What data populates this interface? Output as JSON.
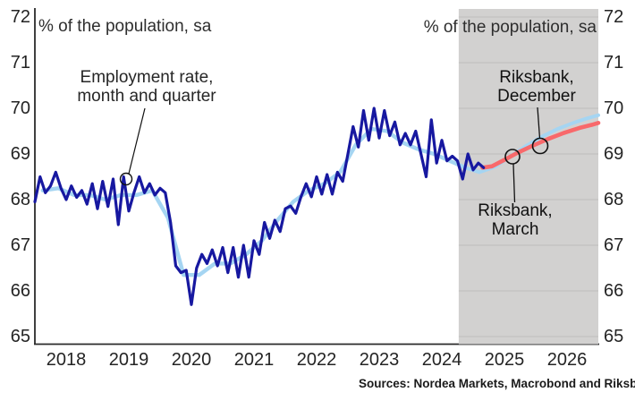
{
  "titles": {
    "left_unit": "% of the population, sa",
    "right_unit": "% of the population, sa"
  },
  "annotations": {
    "employment": {
      "line1": "Employment rate,",
      "line2": "month and quarter"
    },
    "riksbank_december": {
      "line1": "Riksbank,",
      "line2": "December"
    },
    "riksbank_march": {
      "line1": "Riksbank,",
      "line2": "March"
    }
  },
  "source_text": "Sources: Nordea Markets, Macrobond and Riksbank.",
  "colors": {
    "monthly_line": "#1718a0",
    "quarterly_line": "#a5d5f2",
    "march_forecast_line": "#f8696b",
    "forecast_band": "#d2d1d0",
    "gridline": "#bdbdbd",
    "axis": "#2b2b2b",
    "annotation_ink": "#111111"
  },
  "chart_data": {
    "type": "line",
    "title": "",
    "xlabel": "",
    "ylabel": "% of the population, sa",
    "xlim": [
      2018.0,
      2027.0
    ],
    "ylim": [
      64.84,
      72.2
    ],
    "grid": "only inside forecast band",
    "y_ticks": [
      65,
      66,
      67,
      68,
      69,
      70,
      71,
      72
    ],
    "x_ticks": [
      2018,
      2019,
      2020,
      2021,
      2022,
      2023,
      2024,
      2025,
      2026
    ],
    "forecast_band_start": 2024.77,
    "forecast_band_end": 2027.0,
    "series": [
      {
        "name": "Employment rate, month",
        "color": "#1718a0",
        "width": 3.2,
        "x_start": 2018.0,
        "x_step": 0.0833333,
        "values": [
          67.95,
          68.5,
          68.15,
          68.3,
          68.6,
          68.25,
          68.0,
          68.3,
          68.05,
          68.2,
          67.9,
          68.35,
          67.8,
          68.4,
          67.85,
          68.45,
          67.45,
          68.5,
          67.75,
          68.15,
          68.5,
          68.15,
          68.35,
          68.1,
          68.25,
          68.15,
          67.5,
          66.55,
          66.4,
          66.45,
          65.7,
          66.5,
          66.8,
          66.6,
          66.9,
          66.55,
          66.95,
          66.4,
          66.95,
          66.3,
          67.0,
          66.3,
          67.1,
          66.8,
          67.5,
          67.15,
          67.55,
          67.3,
          67.8,
          67.86,
          67.7,
          68.06,
          68.35,
          68.06,
          68.5,
          68.12,
          68.55,
          68.12,
          68.6,
          68.4,
          69.0,
          69.6,
          69.15,
          69.95,
          69.3,
          70.0,
          69.35,
          69.95,
          69.4,
          69.7,
          69.2,
          69.45,
          69.2,
          69.5,
          69.0,
          68.5,
          69.75,
          68.8,
          69.3,
          68.85,
          68.95,
          68.85,
          68.45,
          69.0,
          68.65,
          68.8,
          68.7
        ]
      },
      {
        "name": "Employment rate, quarter",
        "color": "#a5d5f2",
        "width": 4.4,
        "points": [
          [
            2018.125,
            68.2
          ],
          [
            2018.375,
            68.25
          ],
          [
            2018.625,
            68.1
          ],
          [
            2018.875,
            68.1
          ],
          [
            2019.125,
            68.0
          ],
          [
            2019.375,
            68.1
          ],
          [
            2019.625,
            68.1
          ],
          [
            2019.875,
            68.2
          ],
          [
            2020.125,
            67.6
          ],
          [
            2020.375,
            66.35
          ],
          [
            2020.625,
            66.35
          ],
          [
            2020.875,
            66.6
          ],
          [
            2021.125,
            66.6
          ],
          [
            2021.375,
            66.8
          ],
          [
            2021.625,
            67.1
          ],
          [
            2021.875,
            67.55
          ],
          [
            2022.125,
            67.95
          ],
          [
            2022.375,
            68.2
          ],
          [
            2022.625,
            68.35
          ],
          [
            2022.875,
            68.6
          ],
          [
            2023.125,
            69.2
          ],
          [
            2023.375,
            69.55
          ],
          [
            2023.625,
            69.5
          ],
          [
            2023.875,
            69.25
          ],
          [
            2024.125,
            69.1
          ],
          [
            2024.375,
            69.0
          ],
          [
            2024.625,
            68.85
          ],
          [
            2024.875,
            68.7
          ]
        ]
      },
      {
        "name": "Riksbank December forecast",
        "color": "#a5d5f2",
        "width": 4.0,
        "points": [
          [
            2024.875,
            68.7
          ],
          [
            2025.1,
            68.6
          ],
          [
            2025.35,
            68.72
          ],
          [
            2025.6,
            68.95
          ],
          [
            2025.85,
            69.18
          ],
          [
            2026.1,
            69.38
          ],
          [
            2026.35,
            69.55
          ],
          [
            2026.6,
            69.68
          ],
          [
            2026.8,
            69.77
          ],
          [
            2027.0,
            69.85
          ]
        ]
      },
      {
        "name": "Riksbank March forecast",
        "color": "#f8696b",
        "width": 4.6,
        "points": [
          [
            2025.15,
            68.7
          ],
          [
            2025.3,
            68.73
          ],
          [
            2025.5,
            68.87
          ],
          [
            2025.7,
            69.02
          ],
          [
            2025.95,
            69.18
          ],
          [
            2026.2,
            69.33
          ],
          [
            2026.45,
            69.46
          ],
          [
            2026.7,
            69.57
          ],
          [
            2026.9,
            69.64
          ],
          [
            2027.0,
            69.68
          ]
        ]
      }
    ]
  }
}
